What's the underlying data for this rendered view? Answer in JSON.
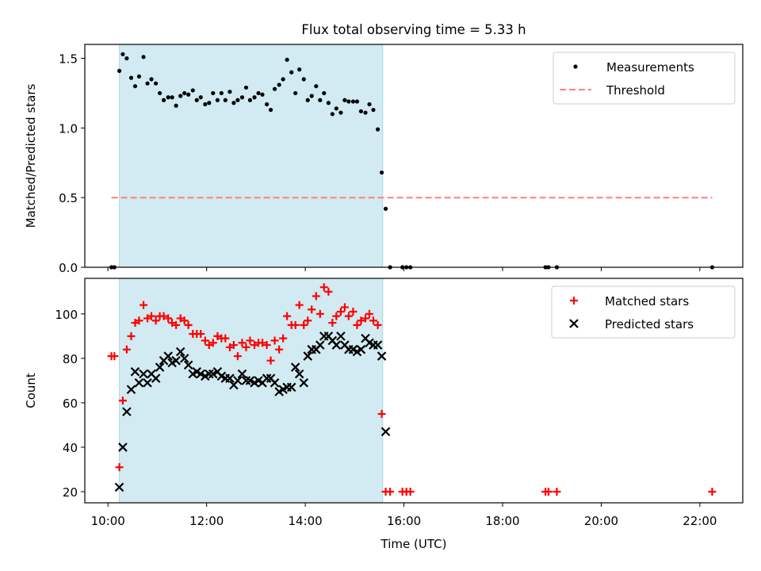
{
  "chart_data": {
    "title": "Flux total observing time = 5.33 h",
    "xlabel": "Time (UTC)",
    "x_unit": "hours UTC",
    "x_ticks": [
      {
        "value": 10,
        "label": "10:00"
      },
      {
        "value": 12,
        "label": "12:00"
      },
      {
        "value": 14,
        "label": "14:00"
      },
      {
        "value": 16,
        "label": "16:00"
      },
      {
        "value": 18,
        "label": "18:00"
      },
      {
        "value": 20,
        "label": "20:00"
      },
      {
        "value": 22,
        "label": "22:00"
      }
    ],
    "xlim": [
      9.53,
      22.87
    ],
    "shaded_interval": {
      "x": [
        10.23,
        15.57
      ],
      "color": "#add8e6"
    },
    "panels": [
      {
        "type": "scatter",
        "ylabel": "Matched/Predicted stars",
        "ylim": [
          0,
          1.6
        ],
        "y_ticks": [
          {
            "value": 0,
            "label": "0.0"
          },
          {
            "value": 0.5,
            "label": "0.5"
          },
          {
            "value": 1.0,
            "label": "1.0"
          },
          {
            "value": 1.5,
            "label": "1.5"
          }
        ],
        "legend_position": "top-right",
        "series": [
          {
            "name": "Measurements",
            "marker": "dot",
            "color": "#000000",
            "points": [
              [
                10.07,
                0
              ],
              [
                10.13,
                0
              ],
              [
                10.23,
                1.41
              ],
              [
                10.3,
                1.53
              ],
              [
                10.38,
                1.5
              ],
              [
                10.47,
                1.36
              ],
              [
                10.55,
                1.3
              ],
              [
                10.63,
                1.37
              ],
              [
                10.72,
                1.51
              ],
              [
                10.8,
                1.32
              ],
              [
                10.88,
                1.35
              ],
              [
                10.97,
                1.32
              ],
              [
                11.05,
                1.25
              ],
              [
                11.13,
                1.2
              ],
              [
                11.22,
                1.22
              ],
              [
                11.3,
                1.22
              ],
              [
                11.38,
                1.16
              ],
              [
                11.47,
                1.23
              ],
              [
                11.55,
                1.25
              ],
              [
                11.63,
                1.24
              ],
              [
                11.72,
                1.27
              ],
              [
                11.8,
                1.2
              ],
              [
                11.88,
                1.22
              ],
              [
                11.97,
                1.17
              ],
              [
                12.05,
                1.18
              ],
              [
                12.13,
                1.25
              ],
              [
                12.22,
                1.2
              ],
              [
                12.3,
                1.25
              ],
              [
                12.38,
                1.2
              ],
              [
                12.47,
                1.26
              ],
              [
                12.55,
                1.18
              ],
              [
                12.63,
                1.2
              ],
              [
                12.72,
                1.22
              ],
              [
                12.8,
                1.29
              ],
              [
                12.88,
                1.2
              ],
              [
                12.97,
                1.22
              ],
              [
                13.05,
                1.25
              ],
              [
                13.13,
                1.24
              ],
              [
                13.22,
                1.17
              ],
              [
                13.3,
                1.13
              ],
              [
                13.38,
                1.28
              ],
              [
                13.47,
                1.31
              ],
              [
                13.55,
                1.35
              ],
              [
                13.63,
                1.49
              ],
              [
                13.72,
                1.4
              ],
              [
                13.8,
                1.25
              ],
              [
                13.88,
                1.42
              ],
              [
                13.97,
                1.35
              ],
              [
                14.05,
                1.2
              ],
              [
                14.13,
                1.23
              ],
              [
                14.22,
                1.3
              ],
              [
                14.3,
                1.2
              ],
              [
                14.38,
                1.25
              ],
              [
                14.47,
                1.18
              ],
              [
                14.55,
                1.1
              ],
              [
                14.63,
                1.14
              ],
              [
                14.72,
                1.11
              ],
              [
                14.8,
                1.2
              ],
              [
                14.88,
                1.19
              ],
              [
                14.97,
                1.19
              ],
              [
                15.05,
                1.19
              ],
              [
                15.13,
                1.12
              ],
              [
                15.22,
                1.11
              ],
              [
                15.3,
                1.17
              ],
              [
                15.38,
                1.13
              ],
              [
                15.47,
                0.99
              ],
              [
                15.55,
                0.68
              ],
              [
                15.63,
                0.42
              ],
              [
                15.72,
                0
              ],
              [
                15.97,
                0
              ],
              [
                16.05,
                0
              ],
              [
                16.13,
                0
              ],
              [
                18.87,
                0
              ],
              [
                18.93,
                0
              ],
              [
                19.1,
                0
              ],
              [
                22.25,
                0
              ]
            ]
          },
          {
            "name": "Threshold",
            "marker": "dashed-line",
            "color": "#ff7f7f",
            "x": [
              10.07,
              22.25
            ],
            "y": 0.5
          }
        ]
      },
      {
        "type": "scatter",
        "ylabel": "Count",
        "ylim": [
          15,
          116
        ],
        "y_ticks": [
          {
            "value": 20,
            "label": "20"
          },
          {
            "value": 40,
            "label": "40"
          },
          {
            "value": 60,
            "label": "60"
          },
          {
            "value": 80,
            "label": "80"
          },
          {
            "value": 100,
            "label": "100"
          }
        ],
        "legend_position": "top-right",
        "series": [
          {
            "name": "Matched stars",
            "marker": "plus",
            "color": "#ff0000",
            "points": [
              [
                10.07,
                81
              ],
              [
                10.13,
                81
              ],
              [
                10.23,
                31
              ],
              [
                10.3,
                61
              ],
              [
                10.38,
                84
              ],
              [
                10.47,
                90
              ],
              [
                10.55,
                96
              ],
              [
                10.63,
                97
              ],
              [
                10.72,
                104
              ],
              [
                10.8,
                98
              ],
              [
                10.88,
                99
              ],
              [
                10.97,
                97
              ],
              [
                11.05,
                99
              ],
              [
                11.13,
                99
              ],
              [
                11.22,
                98
              ],
              [
                11.3,
                96
              ],
              [
                11.38,
                95
              ],
              [
                11.47,
                98
              ],
              [
                11.55,
                97
              ],
              [
                11.63,
                95
              ],
              [
                11.72,
                91
              ],
              [
                11.8,
                91
              ],
              [
                11.88,
                91
              ],
              [
                11.97,
                88
              ],
              [
                12.05,
                86
              ],
              [
                12.13,
                87
              ],
              [
                12.22,
                90
              ],
              [
                12.3,
                89
              ],
              [
                12.38,
                89
              ],
              [
                12.47,
                85
              ],
              [
                12.55,
                86
              ],
              [
                12.63,
                81
              ],
              [
                12.72,
                87
              ],
              [
                12.8,
                85
              ],
              [
                12.88,
                88
              ],
              [
                12.97,
                86
              ],
              [
                13.05,
                87
              ],
              [
                13.13,
                87
              ],
              [
                13.22,
                86
              ],
              [
                13.3,
                79
              ],
              [
                13.38,
                88
              ],
              [
                13.47,
                84
              ],
              [
                13.55,
                89
              ],
              [
                13.63,
                99
              ],
              [
                13.72,
                95
              ],
              [
                13.8,
                95
              ],
              [
                13.88,
                104
              ],
              [
                13.97,
                95
              ],
              [
                14.05,
                97
              ],
              [
                14.13,
                102
              ],
              [
                14.22,
                108
              ],
              [
                14.3,
                100
              ],
              [
                14.38,
                112
              ],
              [
                14.47,
                110
              ],
              [
                14.55,
                96
              ],
              [
                14.63,
                99
              ],
              [
                14.72,
                101
              ],
              [
                14.8,
                103
              ],
              [
                14.88,
                99
              ],
              [
                14.97,
                101
              ],
              [
                15.05,
                95
              ],
              [
                15.13,
                97
              ],
              [
                15.22,
                98
              ],
              [
                15.3,
                100
              ],
              [
                15.38,
                97
              ],
              [
                15.47,
                95
              ],
              [
                15.55,
                55
              ],
              [
                15.63,
                20
              ],
              [
                15.72,
                20
              ],
              [
                15.97,
                20
              ],
              [
                16.05,
                20
              ],
              [
                16.13,
                20
              ],
              [
                18.87,
                20
              ],
              [
                18.93,
                20
              ],
              [
                19.1,
                20
              ],
              [
                22.25,
                20
              ]
            ]
          },
          {
            "name": "Predicted stars",
            "marker": "x",
            "color": "#000000",
            "points": [
              [
                10.23,
                22
              ],
              [
                10.3,
                40
              ],
              [
                10.38,
                56
              ],
              [
                10.47,
                66
              ],
              [
                10.55,
                74
              ],
              [
                10.63,
                69
              ],
              [
                10.72,
                73
              ],
              [
                10.8,
                69
              ],
              [
                10.88,
                73
              ],
              [
                10.97,
                71
              ],
              [
                11.05,
                76
              ],
              [
                11.13,
                79
              ],
              [
                11.22,
                81
              ],
              [
                11.3,
                78
              ],
              [
                11.38,
                79
              ],
              [
                11.47,
                83
              ],
              [
                11.55,
                80
              ],
              [
                11.63,
                77
              ],
              [
                11.72,
                73
              ],
              [
                11.8,
                74
              ],
              [
                11.88,
                73
              ],
              [
                11.97,
                72
              ],
              [
                12.05,
                73
              ],
              [
                12.13,
                73
              ],
              [
                12.22,
                74
              ],
              [
                12.3,
                72
              ],
              [
                12.38,
                71
              ],
              [
                12.47,
                71
              ],
              [
                12.55,
                68
              ],
              [
                12.63,
                70
              ],
              [
                12.72,
                73
              ],
              [
                12.8,
                70
              ],
              [
                12.88,
                70
              ],
              [
                12.97,
                69
              ],
              [
                13.05,
                70
              ],
              [
                13.13,
                69
              ],
              [
                13.22,
                71
              ],
              [
                13.3,
                71
              ],
              [
                13.38,
                69
              ],
              [
                13.47,
                65
              ],
              [
                13.55,
                66
              ],
              [
                13.63,
                67
              ],
              [
                13.72,
                67
              ],
              [
                13.8,
                76
              ],
              [
                13.88,
                73
              ],
              [
                13.97,
                69
              ],
              [
                14.05,
                81
              ],
              [
                14.13,
                84
              ],
              [
                14.22,
                84
              ],
              [
                14.3,
                86
              ],
              [
                14.38,
                90
              ],
              [
                14.47,
                90
              ],
              [
                14.55,
                88
              ],
              [
                14.63,
                86
              ],
              [
                14.72,
                90
              ],
              [
                14.8,
                86
              ],
              [
                14.88,
                84
              ],
              [
                14.97,
                84
              ],
              [
                15.05,
                83
              ],
              [
                15.13,
                84
              ],
              [
                15.22,
                89
              ],
              [
                15.3,
                87
              ],
              [
                15.38,
                86
              ],
              [
                15.47,
                86
              ],
              [
                15.55,
                81
              ],
              [
                15.63,
                47
              ]
            ]
          }
        ]
      }
    ]
  }
}
